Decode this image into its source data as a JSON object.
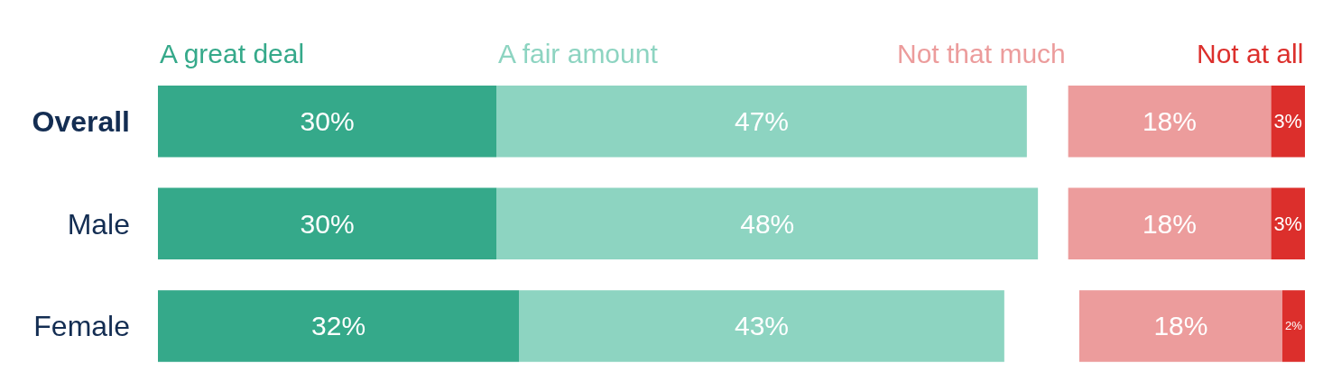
{
  "chart_data": [
    {
      "type": "bar",
      "orientation": "horizontal",
      "stacked": true,
      "legend": "top",
      "tick_labels": "y",
      "categories": [
        "Overall",
        "Male",
        "Female"
      ],
      "series": [
        {
          "name": "A great deal",
          "color": "#35a98a",
          "values": [
            30,
            30,
            32
          ],
          "value_labels": [
            "30%",
            "30%",
            "32%"
          ]
        },
        {
          "name": "A fair amount",
          "color": "#8dd4c1",
          "values": [
            47,
            48,
            43
          ],
          "value_labels": [
            "47%",
            "48%",
            "43%"
          ]
        }
      ]
    },
    {
      "type": "bar",
      "orientation": "horizontal",
      "stacked": true,
      "legend": "top",
      "tick_labels": false,
      "categories": [
        "Overall",
        "Male",
        "Female"
      ],
      "series": [
        {
          "name": "Not at all",
          "color": "#dc2f2c",
          "values": [
            3,
            3,
            2
          ],
          "value_labels": [
            "3%",
            "3%",
            "2%"
          ]
        },
        {
          "name": "Not that much",
          "color": "#ec9c9c",
          "values": [
            18,
            18,
            18
          ],
          "value_labels": [
            "18%",
            "18%",
            "18%"
          ]
        }
      ]
    }
  ]
}
